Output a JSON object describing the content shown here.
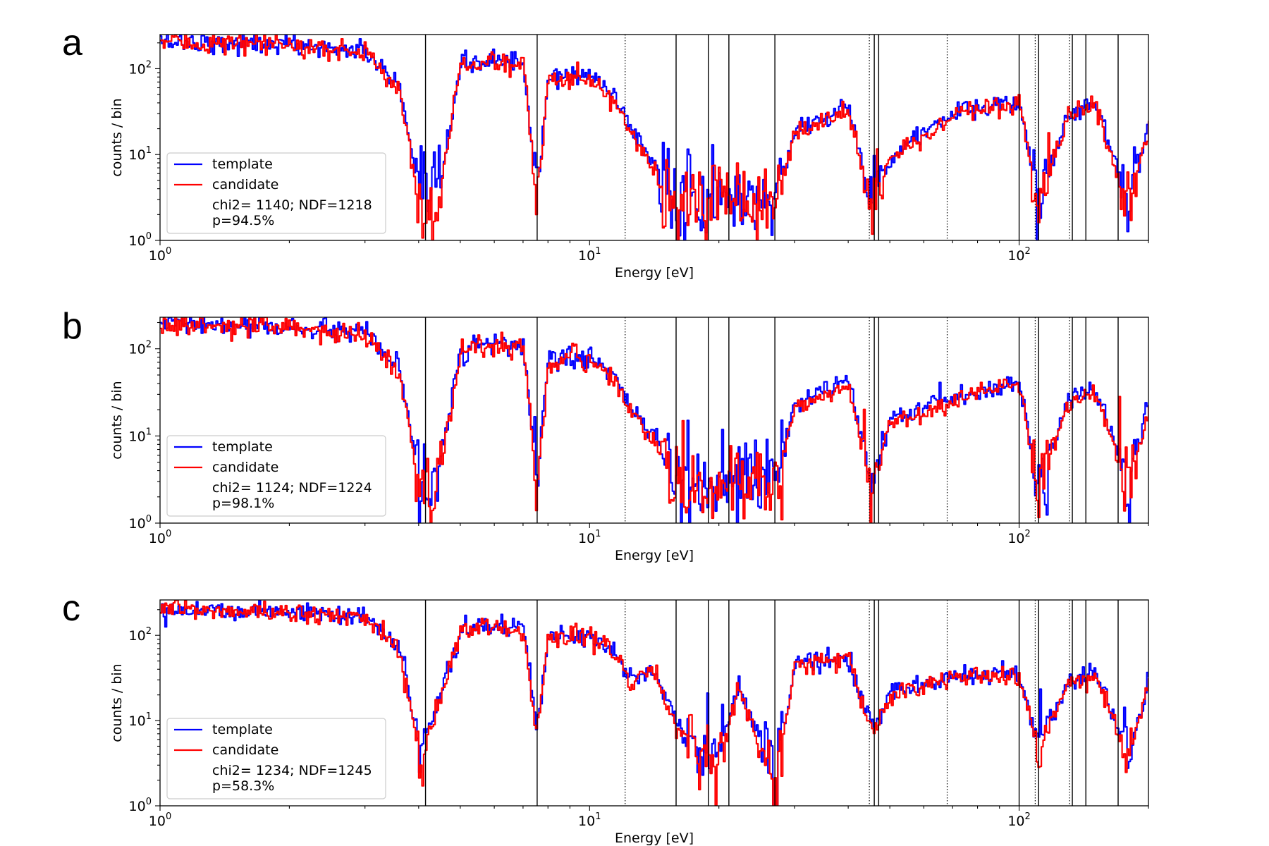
{
  "chart_data": [
    {
      "type": "line",
      "panel": "a",
      "xlabel": "Energy [eV]",
      "ylabel": "counts / bin",
      "xscale": "log",
      "yscale": "log",
      "xlim": [
        1,
        200
      ],
      "ylim": [
        1,
        250
      ],
      "x_ticks": [
        {
          "value": 1,
          "base": "10",
          "exp": "0"
        },
        {
          "value": 10,
          "base": "10",
          "exp": "1"
        },
        {
          "value": 100,
          "base": "10",
          "exp": "2"
        }
      ],
      "y_ticks": [
        {
          "value": 1,
          "base": "10",
          "exp": "0"
        },
        {
          "value": 10,
          "base": "10",
          "exp": "1"
        },
        {
          "value": 100,
          "base": "10",
          "exp": "2"
        }
      ],
      "legend": {
        "placement": "lower-left",
        "entries": [
          "template",
          "candidate"
        ],
        "stats_line1": "chi2= 1140; NDF=1218",
        "stats_line2": "p=94.5%"
      },
      "series": [
        {
          "name": "template",
          "color": "#0000ff",
          "approx_points": [
            [
              1,
              210
            ],
            [
              2,
              190
            ],
            [
              3,
              160
            ],
            [
              3.6,
              60
            ],
            [
              4.0,
              3
            ],
            [
              4.4,
              3
            ],
            [
              5.0,
              110
            ],
            [
              6.0,
              130
            ],
            [
              7.0,
              115
            ],
            [
              7.5,
              3
            ],
            [
              8.0,
              80
            ],
            [
              10,
              85
            ],
            [
              11.5,
              45
            ],
            [
              12.2,
              25
            ],
            [
              14,
              8
            ],
            [
              16,
              2.5
            ],
            [
              20,
              3
            ],
            [
              27,
              3
            ],
            [
              30,
              20
            ],
            [
              40,
              35
            ],
            [
              45,
              3
            ],
            [
              50,
              10
            ],
            [
              70,
              30
            ],
            [
              100,
              40
            ],
            [
              110,
              3
            ],
            [
              130,
              30
            ],
            [
              150,
              40
            ],
            [
              180,
              3
            ],
            [
              200,
              25
            ]
          ]
        },
        {
          "name": "candidate",
          "color": "#ff0000",
          "approx_points": [
            [
              1,
              205
            ],
            [
              2,
              185
            ],
            [
              3,
              155
            ],
            [
              3.6,
              55
            ],
            [
              4.0,
              2.5
            ],
            [
              4.4,
              2.5
            ],
            [
              5.0,
              105
            ],
            [
              6.0,
              125
            ],
            [
              7.0,
              110
            ],
            [
              7.5,
              2.5
            ],
            [
              8.0,
              75
            ],
            [
              10,
              80
            ],
            [
              11.5,
              40
            ],
            [
              12.2,
              22
            ],
            [
              14,
              7
            ],
            [
              16,
              2.5
            ],
            [
              20,
              2.5
            ],
            [
              27,
              2.5
            ],
            [
              30,
              18
            ],
            [
              40,
              33
            ],
            [
              45,
              2.5
            ],
            [
              50,
              9
            ],
            [
              70,
              28
            ],
            [
              100,
              38
            ],
            [
              110,
              2.5
            ],
            [
              130,
              28
            ],
            [
              150,
              38
            ],
            [
              180,
              2.5
            ],
            [
              200,
              22
            ]
          ]
        }
      ]
    },
    {
      "type": "line",
      "panel": "b",
      "xlabel": "Energy [eV]",
      "ylabel": "counts / bin",
      "xscale": "log",
      "yscale": "log",
      "xlim": [
        1,
        200
      ],
      "ylim": [
        1,
        230
      ],
      "x_ticks": [
        {
          "value": 1,
          "base": "10",
          "exp": "0"
        },
        {
          "value": 10,
          "base": "10",
          "exp": "1"
        },
        {
          "value": 100,
          "base": "10",
          "exp": "2"
        }
      ],
      "y_ticks": [
        {
          "value": 1,
          "base": "10",
          "exp": "0"
        },
        {
          "value": 10,
          "base": "10",
          "exp": "1"
        },
        {
          "value": 100,
          "base": "10",
          "exp": "2"
        }
      ],
      "legend": {
        "placement": "lower-left",
        "entries": [
          "template",
          "candidate"
        ],
        "stats_line1": "chi2= 1124; NDF=1224",
        "stats_line2": "p=98.1%"
      },
      "series": [
        {
          "name": "template",
          "color": "#0000ff",
          "approx_points": [
            [
              1,
              195
            ],
            [
              2,
              175
            ],
            [
              3,
              150
            ],
            [
              3.6,
              55
            ],
            [
              4.0,
              3
            ],
            [
              4.4,
              3
            ],
            [
              5.0,
              100
            ],
            [
              6.0,
              115
            ],
            [
              7.0,
              105
            ],
            [
              7.5,
              3
            ],
            [
              8.0,
              75
            ],
            [
              10,
              80
            ],
            [
              11.5,
              45
            ],
            [
              12.2,
              25
            ],
            [
              14,
              10
            ],
            [
              16,
              3
            ],
            [
              20,
              3
            ],
            [
              27,
              3
            ],
            [
              30,
              25
            ],
            [
              40,
              40
            ],
            [
              45,
              3
            ],
            [
              50,
              15
            ],
            [
              70,
              28
            ],
            [
              100,
              40
            ],
            [
              110,
              3
            ],
            [
              130,
              25
            ],
            [
              150,
              35
            ],
            [
              180,
              3
            ],
            [
              200,
              25
            ]
          ]
        },
        {
          "name": "candidate",
          "color": "#ff0000",
          "approx_points": [
            [
              1,
              190
            ],
            [
              2,
              170
            ],
            [
              3,
              145
            ],
            [
              3.6,
              50
            ],
            [
              4.0,
              2.5
            ],
            [
              4.4,
              2.5
            ],
            [
              5.0,
              95
            ],
            [
              6.0,
              110
            ],
            [
              7.0,
              100
            ],
            [
              7.5,
              2.5
            ],
            [
              8.0,
              70
            ],
            [
              10,
              75
            ],
            [
              11.5,
              42
            ],
            [
              12.2,
              22
            ],
            [
              14,
              9
            ],
            [
              16,
              2.5
            ],
            [
              20,
              2.5
            ],
            [
              27,
              2.5
            ],
            [
              30,
              22
            ],
            [
              40,
              38
            ],
            [
              45,
              2.5
            ],
            [
              50,
              14
            ],
            [
              70,
              26
            ],
            [
              100,
              38
            ],
            [
              110,
              2.5
            ],
            [
              130,
              23
            ],
            [
              150,
              33
            ],
            [
              180,
              2.5
            ],
            [
              200,
              22
            ]
          ]
        }
      ]
    },
    {
      "type": "line",
      "panel": "c",
      "xlabel": "Energy [eV]",
      "ylabel": "counts / bin",
      "xscale": "log",
      "yscale": "log",
      "xlim": [
        1,
        200
      ],
      "ylim": [
        1,
        260
      ],
      "x_ticks": [
        {
          "value": 1,
          "base": "10",
          "exp": "0"
        },
        {
          "value": 10,
          "base": "10",
          "exp": "1"
        },
        {
          "value": 100,
          "base": "10",
          "exp": "2"
        }
      ],
      "y_ticks": [
        {
          "value": 1,
          "base": "10",
          "exp": "0"
        },
        {
          "value": 10,
          "base": "10",
          "exp": "1"
        },
        {
          "value": 100,
          "base": "10",
          "exp": "2"
        }
      ],
      "legend": {
        "placement": "lower-left",
        "entries": [
          "template",
          "candidate"
        ],
        "stats_line1": "chi2= 1234; NDF=1245",
        "stats_line2": "p=58.3%"
      },
      "series": [
        {
          "name": "template",
          "color": "#0000ff",
          "approx_points": [
            [
              1,
              205
            ],
            [
              2,
              190
            ],
            [
              3,
              165
            ],
            [
              3.6,
              70
            ],
            [
              4.0,
              5
            ],
            [
              4.3,
              10
            ],
            [
              5.0,
              120
            ],
            [
              6.0,
              130
            ],
            [
              7.0,
              120
            ],
            [
              7.5,
              8
            ],
            [
              8.0,
              100
            ],
            [
              10,
              105
            ],
            [
              11.5,
              70
            ],
            [
              12.2,
              30
            ],
            [
              14,
              40
            ],
            [
              16,
              8
            ],
            [
              20,
              4
            ],
            [
              22,
              25
            ],
            [
              27,
              2
            ],
            [
              30,
              50
            ],
            [
              40,
              55
            ],
            [
              45,
              8
            ],
            [
              50,
              20
            ],
            [
              70,
              35
            ],
            [
              100,
              35
            ],
            [
              110,
              5
            ],
            [
              130,
              30
            ],
            [
              150,
              35
            ],
            [
              180,
              4
            ],
            [
              200,
              35
            ]
          ]
        },
        {
          "name": "candidate",
          "color": "#ff0000",
          "approx_points": [
            [
              1,
              200
            ],
            [
              2,
              185
            ],
            [
              3,
              160
            ],
            [
              3.6,
              65
            ],
            [
              4.0,
              4
            ],
            [
              4.3,
              9
            ],
            [
              5.0,
              115
            ],
            [
              6.0,
              125
            ],
            [
              7.0,
              115
            ],
            [
              7.5,
              7
            ],
            [
              8.0,
              95
            ],
            [
              10,
              100
            ],
            [
              11.5,
              65
            ],
            [
              12.2,
              28
            ],
            [
              14,
              38
            ],
            [
              16,
              7
            ],
            [
              20,
              3.5
            ],
            [
              22,
              23
            ],
            [
              27,
              2
            ],
            [
              30,
              48
            ],
            [
              40,
              52
            ],
            [
              45,
              7
            ],
            [
              50,
              18
            ],
            [
              70,
              33
            ],
            [
              100,
              33
            ],
            [
              110,
              4.5
            ],
            [
              130,
              28
            ],
            [
              150,
              33
            ],
            [
              180,
              3.5
            ],
            [
              200,
              32
            ]
          ]
        }
      ]
    }
  ],
  "reference_lines": {
    "solid": [
      4.15,
      7.55,
      15.9,
      18.9,
      21.1,
      27.0,
      46.0,
      47.1,
      100.0,
      111.0,
      133.0,
      143.0,
      170.0
    ],
    "dotted": [
      12.1,
      44.8,
      68.0,
      109.0,
      131.0
    ]
  },
  "colors": {
    "template": "#0000ff",
    "candidate": "#ff0000",
    "axes": "#000000",
    "legend_border": "#cccccc"
  }
}
